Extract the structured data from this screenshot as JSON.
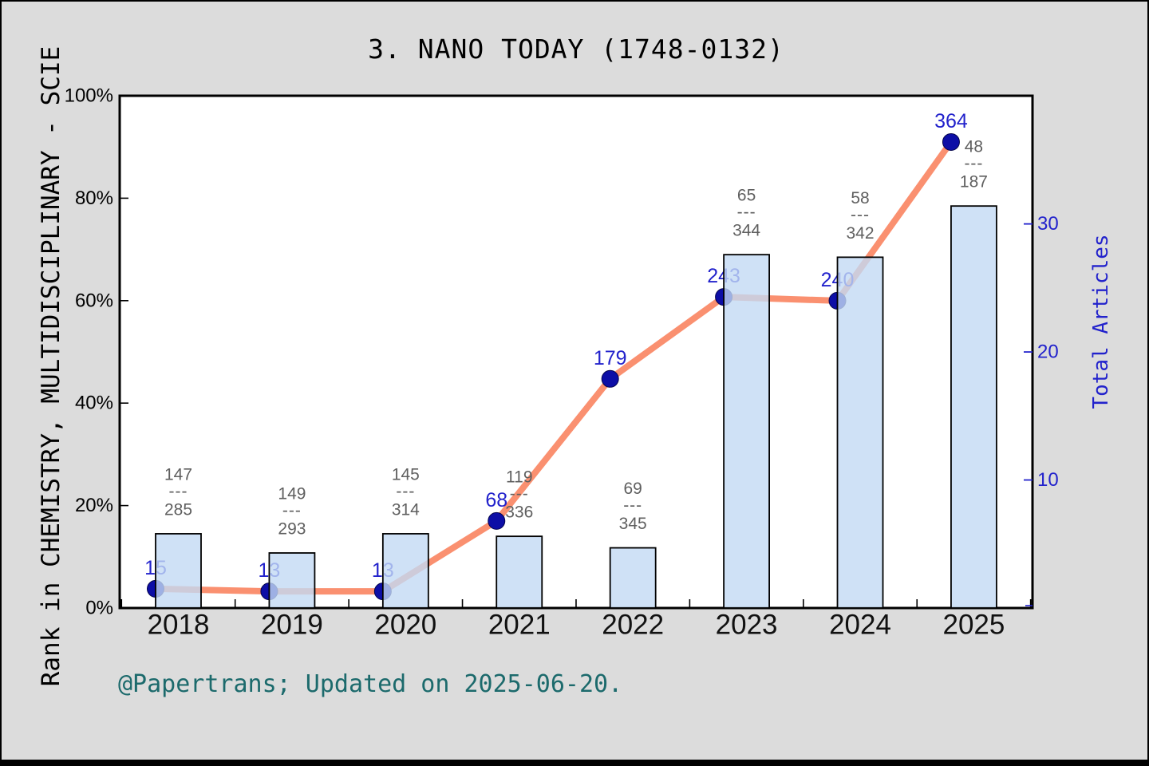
{
  "title": "3. NANO TODAY (1748-0132)",
  "footer": {
    "text": "@Papertrans; Updated on 2025-06-20.",
    "color": "#1c6a6c"
  },
  "colors": {
    "page_background": "#dcdcdc",
    "plot_background": "#ffffff",
    "line": "#fa9070",
    "point": "#0d0ea6",
    "point_label": "#2222cc",
    "bar_fill": "rgba(195,218,244,0.8)",
    "bar_stroke": "#000000",
    "fraction_text": "#5f5f5f",
    "right_axis": "#2222cc",
    "left_axis": "#000000"
  },
  "chart_data": {
    "type": "combo",
    "title": "3. NANO TODAY (1748-0132)",
    "categories": [
      "2018",
      "2019",
      "2020",
      "2021",
      "2022",
      "2023",
      "2024",
      "2025"
    ],
    "left_axis": {
      "label": "Rank in CHEMISTRY, MULTIDISCIPLINARY - SCIE",
      "ticks": [
        "0%",
        "20%",
        "40%",
        "60%",
        "80%",
        "100%"
      ],
      "tick_values": [
        0,
        20,
        40,
        60,
        80,
        100
      ],
      "range": [
        0,
        100
      ]
    },
    "right_axis": {
      "label": "Total Articles",
      "ticks": [
        {
          "label": "10",
          "value": 100
        },
        {
          "label": "20",
          "value": 200
        },
        {
          "label": "30",
          "value": 300
        }
      ],
      "zero_at_bottom": true
    },
    "grid": false,
    "legend": false,
    "series": [
      {
        "name": "total-articles-line",
        "type": "line",
        "axis": "right",
        "values": [
          15,
          13,
          13,
          68,
          179,
          243,
          240,
          364
        ],
        "point_labels": [
          "15",
          "13",
          "13",
          "68",
          "179",
          "243",
          "240",
          "364"
        ]
      },
      {
        "name": "articles-bars",
        "type": "bar",
        "axis": "right",
        "values": [
          58,
          43,
          58,
          56,
          47,
          276,
          274,
          314
        ]
      }
    ],
    "rank_fractions": [
      {
        "category": "2018",
        "numerator": "147",
        "denominator": "285"
      },
      {
        "category": "2019",
        "numerator": "149",
        "denominator": "293"
      },
      {
        "category": "2020",
        "numerator": "145",
        "denominator": "314"
      },
      {
        "category": "2021",
        "numerator": "119",
        "denominator": "336"
      },
      {
        "category": "2022",
        "numerator": "69",
        "denominator": "345"
      },
      {
        "category": "2023",
        "numerator": "65",
        "denominator": "344"
      },
      {
        "category": "2024",
        "numerator": "58",
        "denominator": "342"
      },
      {
        "category": "2025",
        "numerator": "48",
        "denominator": "187"
      }
    ]
  }
}
